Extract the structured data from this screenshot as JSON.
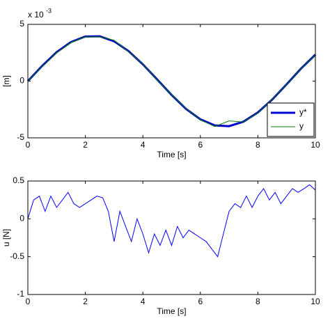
{
  "chart_data": [
    {
      "type": "line",
      "xlabel": "Time [s]",
      "ylabel": "[m]",
      "y_multiplier": "x 10",
      "y_exponent": "-3",
      "xlim": [
        0,
        10
      ],
      "ylim": [
        -5,
        5
      ],
      "xticks": [
        0,
        2,
        4,
        6,
        8,
        10
      ],
      "yticks": [
        -5,
        0,
        5
      ],
      "legend": "lower right",
      "x": [
        0,
        0.5,
        1,
        1.5,
        2,
        2.5,
        3,
        3.5,
        4,
        4.5,
        5,
        5.5,
        6,
        6.5,
        7,
        7.5,
        8,
        8.5,
        9,
        9.5,
        10
      ],
      "series": [
        {
          "name": "y*",
          "color": "#0000cc",
          "values": [
            0,
            1.35,
            2.55,
            3.44,
            3.93,
            3.95,
            3.51,
            2.65,
            1.48,
            0.14,
            -1.22,
            -2.44,
            -3.37,
            -3.9,
            -3.97,
            -3.57,
            -2.76,
            -1.62,
            -0.28,
            1.1,
            2.33
          ]
        },
        {
          "name": "y",
          "color": "#008000",
          "values": [
            0,
            1.3,
            2.5,
            3.4,
            3.9,
            3.9,
            3.6,
            2.6,
            1.5,
            0.1,
            -1.2,
            -2.4,
            -3.4,
            -4.0,
            -3.5,
            -3.6,
            -2.8,
            -1.6,
            -0.3,
            1.1,
            2.3
          ]
        }
      ]
    },
    {
      "type": "line",
      "xlabel": "Time [s]",
      "ylabel": "u [N]",
      "xlim": [
        0,
        10
      ],
      "ylim": [
        -1,
        0.5
      ],
      "xticks": [
        0,
        2,
        4,
        6,
        8,
        10
      ],
      "yticks": [
        -1,
        -0.5,
        0,
        0.5
      ],
      "x": [
        0,
        0.2,
        0.4,
        0.6,
        0.8,
        1,
        1.2,
        1.4,
        1.6,
        1.8,
        2,
        2.2,
        2.4,
        2.6,
        2.8,
        3,
        3.2,
        3.4,
        3.6,
        3.8,
        4,
        4.2,
        4.4,
        4.6,
        4.8,
        5,
        5.2,
        5.4,
        5.6,
        5.8,
        6,
        6.2,
        6.4,
        6.6,
        6.8,
        7,
        7.2,
        7.4,
        7.6,
        7.8,
        8,
        8.2,
        8.4,
        8.6,
        8.8,
        9,
        9.2,
        9.4,
        9.6,
        9.8,
        10
      ],
      "series": [
        {
          "color": "#0000ff",
          "values": [
            0,
            0.25,
            0.3,
            0.1,
            0.3,
            0.15,
            0.25,
            0.35,
            0.2,
            0.15,
            0.2,
            0.25,
            0.3,
            0.28,
            0.1,
            -0.3,
            0.1,
            -0.1,
            -0.3,
            0,
            -0.2,
            -0.45,
            -0.2,
            -0.35,
            -0.15,
            -0.35,
            -0.1,
            -0.25,
            -0.15,
            -0.2,
            -0.25,
            -0.3,
            -0.4,
            -0.5,
            -0.2,
            0.1,
            0.2,
            0.15,
            0.3,
            0.15,
            0.3,
            0.4,
            0.25,
            0.35,
            0.2,
            0.3,
            0.4,
            0.35,
            0.4,
            0.45,
            0.38
          ]
        }
      ]
    }
  ]
}
